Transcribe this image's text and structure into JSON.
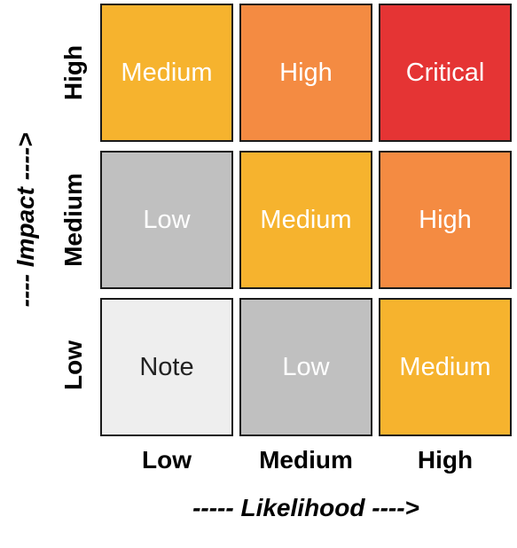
{
  "axes": {
    "x_title": "----- Likelihood ---->",
    "y_title": "---- Impact ---->",
    "x_labels": [
      "Low",
      "Medium",
      "High"
    ],
    "y_labels": [
      "High",
      "Medium",
      "Low"
    ]
  },
  "matrix": [
    [
      {
        "label": "Medium",
        "color": "#F6B32E"
      },
      {
        "label": "High",
        "color": "#F48B42"
      },
      {
        "label": "Critical",
        "color": "#E53434"
      }
    ],
    [
      {
        "label": "Low",
        "color": "#C0C0C0"
      },
      {
        "label": "Medium",
        "color": "#F6B32E"
      },
      {
        "label": "High",
        "color": "#F48B42"
      }
    ],
    [
      {
        "label": "Note",
        "color": "#EEEEEE"
      },
      {
        "label": "Low",
        "color": "#C0C0C0"
      },
      {
        "label": "Medium",
        "color": "#F6B32E"
      }
    ]
  ]
}
